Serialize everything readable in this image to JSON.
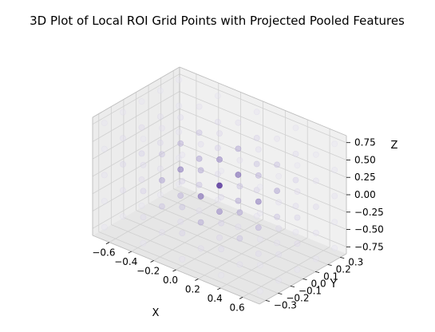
{
  "chart_data": {
    "type": "scatter",
    "subtype": "3d",
    "title": "3D Plot of Local ROI Grid Points with Projected  Pooled Features",
    "xlabel": "X",
    "ylabel": "Y",
    "zlabel": "Z",
    "x_ticks": [
      "−0.6",
      "−0.4",
      "−0.2",
      "0.0",
      "0.2",
      "0.4",
      "0.6"
    ],
    "y_ticks": [
      "−0.3",
      "−0.2",
      "−0.1",
      "0.0",
      "0.1",
      "0.2",
      "0.3"
    ],
    "z_ticks": [
      "−0.75",
      "−0.50",
      "−0.25",
      "0.00",
      "0.25",
      "0.50",
      "0.75"
    ],
    "xlim": [
      -0.75,
      0.75
    ],
    "ylim": [
      -0.35,
      0.35
    ],
    "zlim": [
      -0.85,
      0.85
    ],
    "grid": true,
    "colormap": "Purples",
    "grid_points": {
      "x": [
        -0.7,
        -0.35,
        0.0,
        0.35,
        0.7
      ],
      "y": [
        -0.3,
        -0.15,
        0.0,
        0.15,
        0.3
      ],
      "z": [
        -0.75,
        -0.375,
        0.0,
        0.375,
        0.75
      ]
    },
    "feature_center": [
      0.0,
      0.0,
      0.0
    ],
    "feature_falloff": 0.35
  }
}
